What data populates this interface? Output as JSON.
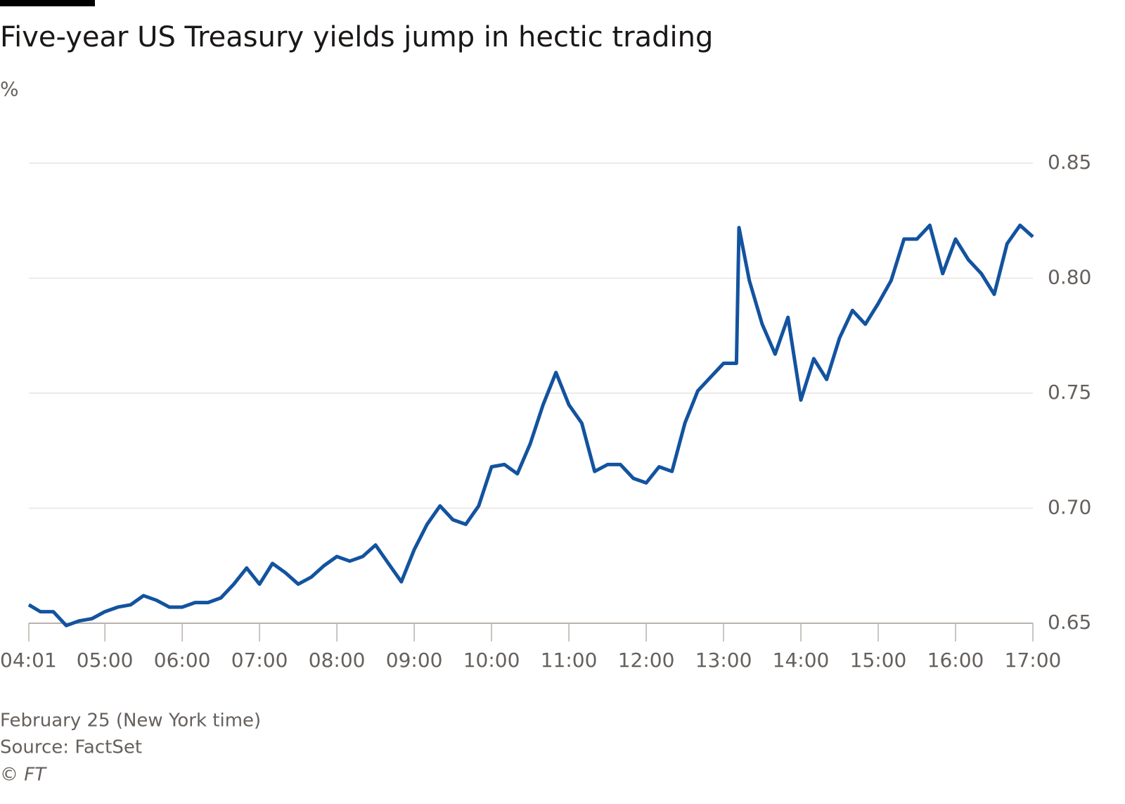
{
  "chart_data": {
    "type": "line",
    "title": "Five-year US Treasury yields jump in hectic trading",
    "y_unit": "%",
    "xlabel": "February 25 (New York time)",
    "source": "Source: FactSet",
    "credit": "© FT",
    "x": [
      "04:01",
      "04:10",
      "04:20",
      "04:30",
      "04:40",
      "04:50",
      "05:00",
      "05:10",
      "05:20",
      "05:30",
      "05:40",
      "05:50",
      "06:00",
      "06:10",
      "06:20",
      "06:30",
      "06:40",
      "06:50",
      "07:00",
      "07:10",
      "07:20",
      "07:30",
      "07:40",
      "07:50",
      "08:00",
      "08:10",
      "08:20",
      "08:30",
      "08:40",
      "08:50",
      "09:00",
      "09:10",
      "09:20",
      "09:30",
      "09:40",
      "09:50",
      "10:00",
      "10:10",
      "10:20",
      "10:30",
      "10:40",
      "10:50",
      "11:00",
      "11:10",
      "11:20",
      "11:30",
      "11:40",
      "11:50",
      "12:00",
      "12:10",
      "12:20",
      "12:30",
      "12:40",
      "12:50",
      "13:00",
      "13:10",
      "13:12",
      "13:20",
      "13:30",
      "13:40",
      "13:50",
      "14:00",
      "14:10",
      "14:20",
      "14:30",
      "14:40",
      "14:50",
      "15:00",
      "15:10",
      "15:20",
      "15:30",
      "15:40",
      "15:50",
      "16:00",
      "16:10",
      "16:20",
      "16:30",
      "16:40",
      "16:50",
      "17:00"
    ],
    "series": [
      {
        "name": "Five-year US Treasury yield",
        "color": "#13539f",
        "values": [
          0.658,
          0.655,
          0.655,
          0.649,
          0.651,
          0.652,
          0.655,
          0.657,
          0.658,
          0.662,
          0.66,
          0.657,
          0.657,
          0.659,
          0.659,
          0.661,
          0.667,
          0.674,
          0.667,
          0.676,
          0.672,
          0.667,
          0.67,
          0.675,
          0.679,
          0.677,
          0.679,
          0.684,
          0.676,
          0.668,
          0.682,
          0.693,
          0.701,
          0.695,
          0.693,
          0.701,
          0.718,
          0.719,
          0.715,
          0.728,
          0.745,
          0.759,
          0.745,
          0.737,
          0.716,
          0.719,
          0.719,
          0.713,
          0.711,
          0.718,
          0.716,
          0.737,
          0.751,
          0.757,
          0.763,
          0.763,
          0.822,
          0.799,
          0.78,
          0.767,
          0.783,
          0.747,
          0.765,
          0.756,
          0.774,
          0.786,
          0.78,
          0.789,
          0.799,
          0.817,
          0.817,
          0.823,
          0.802,
          0.817,
          0.808,
          0.802,
          0.793,
          0.815,
          0.823,
          0.818
        ]
      }
    ],
    "ylim": [
      0.65,
      0.85
    ],
    "yticks": [
      0.65,
      {
        "value": 0.7,
        "label": "0.70"
      },
      0.75,
      {
        "value": 0.8,
        "label": "0.80"
      },
      0.85
    ],
    "xlim": [
      "04:01",
      "17:00"
    ],
    "xticks": [
      "04:01",
      "05:00",
      "06:00",
      "07:00",
      "08:00",
      "09:00",
      "10:00",
      "11:00",
      "12:00",
      "13:00",
      "14:00",
      "15:00",
      "16:00",
      "17:00"
    ],
    "grid": true
  }
}
